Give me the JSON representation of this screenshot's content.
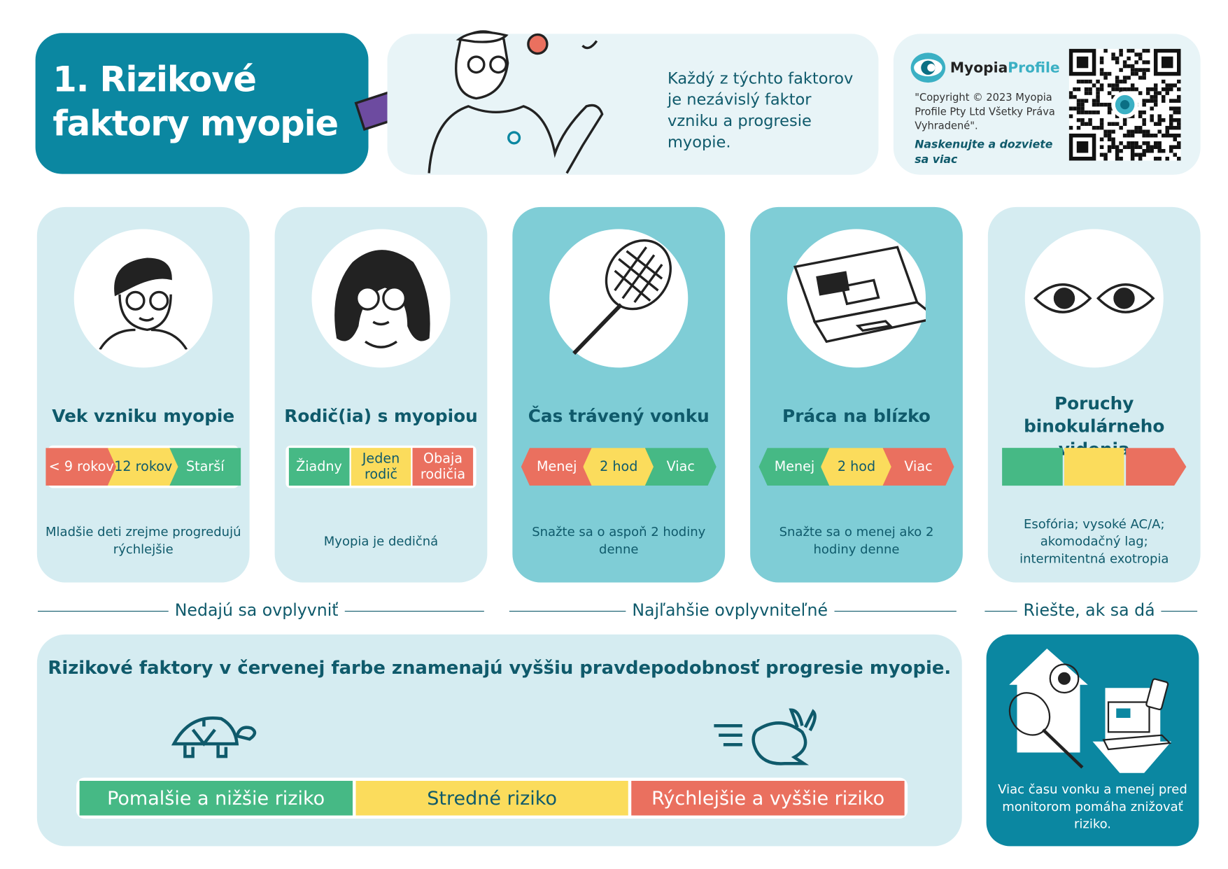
{
  "header": {
    "title_line1": "1. Rizikové",
    "title_line2": "faktory myopie",
    "intro": "Každý z týchto faktorov je nezávislý faktor vzniku a progresie myopie.",
    "brand": {
      "logo_part1": "Myopia",
      "logo_part2": "Profile",
      "copyright": "\"Copyright © 2023 Myopia Profile Pty Ltd Všetky Práva Vyhradené\".",
      "scan_cta": "Naskenujte a dozviete sa viac"
    }
  },
  "cards": [
    {
      "title": "Vek vzniku myopie",
      "icon": "child-with-glasses-icon",
      "scale": [
        "< 9 rokov",
        "12 rokov",
        "Starší"
      ],
      "scale_colors": [
        "r",
        "y",
        "g"
      ],
      "desc": "Mladšie deti zrejme progredujú rýchlejšie"
    },
    {
      "title": "Rodič(ia) s myopiou",
      "icon": "parent-with-glasses-icon",
      "scale": [
        "Žiadny",
        "Jeden rodič",
        "Obaja rodičia"
      ],
      "scale_colors": [
        "g",
        "y",
        "r"
      ],
      "desc": "Myopia je dedičná"
    },
    {
      "title": "Čas trávený vonku",
      "icon": "tennis-racket-icon",
      "scale": [
        "Menej",
        "2 hod",
        "Viac"
      ],
      "scale_colors": [
        "r",
        "y",
        "g"
      ],
      "desc": "Snažte sa o aspoň 2 hodiny denne"
    },
    {
      "title": "Práca na blízko",
      "icon": "laptop-icon",
      "scale": [
        "Menej",
        "2 hod",
        "Viac"
      ],
      "scale_colors": [
        "g",
        "y",
        "r"
      ],
      "desc": "Snažte sa o menej ako 2 hodiny denne"
    },
    {
      "title": "Poruchy binokulárneho videnia",
      "icon": "eyes-icon",
      "scale": [
        "",
        "",
        ""
      ],
      "scale_colors": [
        "g",
        "y",
        "r"
      ],
      "desc": "Esofória; vysoké AC/A; akomodačný lag; intermitentná exotropia"
    }
  ],
  "groups": [
    "Nedajú sa ovplyvniť",
    "Najľahšie ovplyvniteľné",
    "Riešte, ak sa dá"
  ],
  "bottom": {
    "heading": "Rizikové faktory v červenej farbe znamenajú vyššiu pravdepodobnosť progresie myopie.",
    "legend": [
      "Pomalšie a nižšie riziko",
      "Stredné riziko",
      "Rýchlejšie a vyššie riziko"
    ]
  },
  "tip": "Viac času vonku a menej pred monitorom pomáha znižovať riziko.",
  "colors": {
    "teal": "#0b87a1",
    "dark": "#0f5a6b",
    "light": "#d5ecf1",
    "mid": "#7fcdd6",
    "red": "#ea705f",
    "yellow": "#fbdc5c",
    "green": "#46b985"
  }
}
